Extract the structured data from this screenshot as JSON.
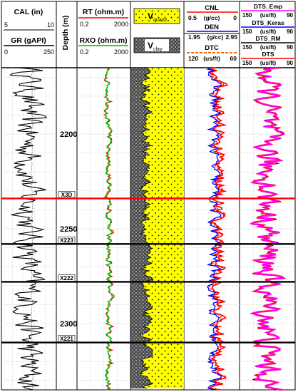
{
  "tracks": [
    {
      "id": "cal-gr",
      "curves": [
        {
          "name": "CAL (in)",
          "min": "5",
          "max": "10",
          "color": "#000000"
        },
        {
          "name": "GR (gAPI)",
          "min": "0",
          "max": "250",
          "color": "#000000"
        }
      ]
    },
    {
      "id": "depth",
      "label": "Depth (m)"
    },
    {
      "id": "resistivity",
      "curves": [
        {
          "name": "RT (ohm.m)",
          "min": "0.2",
          "max": "2000",
          "color": "#ff0000"
        },
        {
          "name": "RXO (ohm.m)",
          "min": "0.2",
          "max": "2000",
          "color": "#00b000"
        }
      ]
    },
    {
      "id": "volume",
      "legend": [
        {
          "symbol": "V",
          "sub": "quartz",
          "fill": "#ffff00"
        },
        {
          "symbol": "V",
          "sub": "clay",
          "fill": "#666666"
        }
      ]
    },
    {
      "id": "porosity",
      "curves": [
        {
          "name": "CNL",
          "min": "0.5",
          "unit": "(g/cc)",
          "max": "0",
          "color": "#ff0000"
        },
        {
          "name": "DEN",
          "min": "1.95",
          "unit": "(g/cc)",
          "max": "2.95",
          "color": "#0000ff"
        },
        {
          "name": "DTC",
          "min": "120",
          "unit": "(us/ft)",
          "max": "60",
          "color": "#ff6600",
          "dashed": true
        }
      ]
    },
    {
      "id": "sonic",
      "curves": [
        {
          "name": "DTS_Emp",
          "min": "150",
          "unit": "(us/ft)",
          "max": "90",
          "color": "#ff00ff"
        },
        {
          "name": "DTS_Keras",
          "min": "150",
          "unit": "(us/ft)",
          "max": "90",
          "color": "#0000ff"
        },
        {
          "name": "DTS_RM",
          "min": "150",
          "unit": "(us/ft)",
          "max": "90",
          "color": "#000000"
        },
        {
          "name": "DTS",
          "min": "150",
          "unit": "(us/ft)",
          "max": "90",
          "color": "#ff0000"
        }
      ]
    }
  ],
  "chart_data": {
    "type": "line",
    "depth_range": [
      2165,
      2335
    ],
    "depth_ticks": [
      2200,
      2250,
      2300
    ],
    "formation_tops": [
      {
        "name": "X3D",
        "depth": 2234,
        "color": "#ff0000"
      },
      {
        "name": "X223",
        "depth": 2258,
        "color": "#000000"
      },
      {
        "name": "X222",
        "depth": 2278,
        "color": "#000000"
      },
      {
        "name": "X221",
        "depth": 2310,
        "color": "#000000"
      }
    ]
  }
}
